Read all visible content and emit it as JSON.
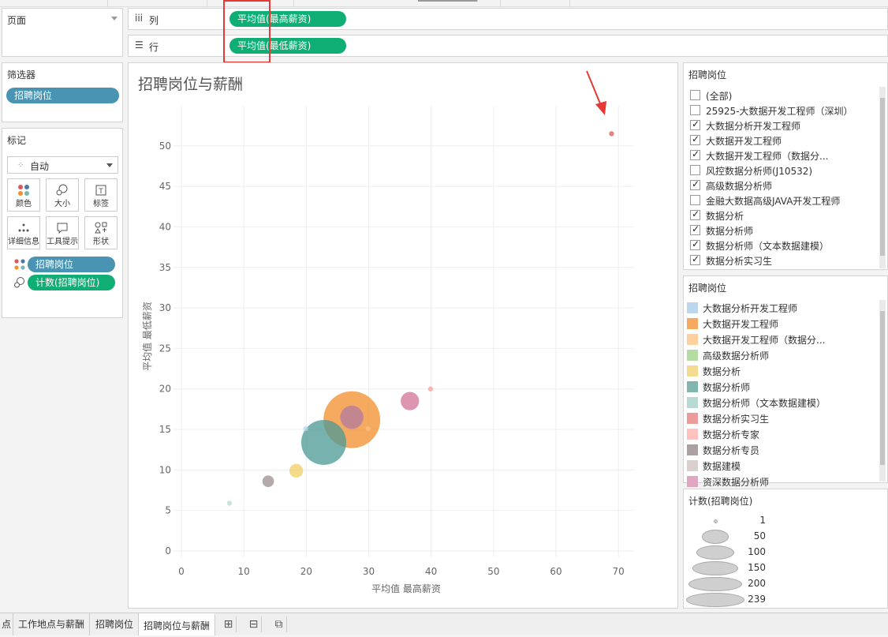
{
  "shelves": {
    "columns_label": "列",
    "rows_label": "行",
    "columns_field": "平均值(最高薪资)",
    "rows_field": "平均值(最低薪资)"
  },
  "pages": {
    "title": "页面"
  },
  "filters": {
    "title": "筛选器",
    "field": "招聘岗位"
  },
  "marks": {
    "title": "标记",
    "type": "自动",
    "buttons": [
      {
        "label": "颜色",
        "icon": "color-icon"
      },
      {
        "label": "大小",
        "icon": "size-icon"
      },
      {
        "label": "标签",
        "icon": "label-icon"
      },
      {
        "label": "详细信息",
        "icon": "detail-icon"
      },
      {
        "label": "工具提示",
        "icon": "tooltip-icon"
      },
      {
        "label": "形状",
        "icon": "shape-icon"
      }
    ],
    "fields": [
      {
        "label": "招聘岗位",
        "encoding": "color"
      },
      {
        "label": "计数(招聘岗位)",
        "encoding": "size"
      }
    ]
  },
  "chart": {
    "title": "招聘岗位与薪酬"
  },
  "chart_data": {
    "type": "scatter",
    "title": "招聘岗位与薪酬",
    "xlabel": "平均值 最高薪资",
    "ylabel": "平均值 最低薪资",
    "xlim": [
      0,
      72
    ],
    "ylim": [
      0,
      53
    ],
    "xticks": [
      0,
      10,
      20,
      30,
      40,
      50,
      60,
      70
    ],
    "yticks": [
      0,
      5,
      10,
      15,
      20,
      25,
      30,
      35,
      40,
      45,
      50
    ],
    "grid": true,
    "points": [
      {
        "x": 7.7,
        "y": 5.9,
        "count": 1,
        "color": "#b9d9d5"
      },
      {
        "x": 13.9,
        "y": 8.6,
        "count": 10,
        "color": "#9b8e8c"
      },
      {
        "x": 18.4,
        "y": 9.9,
        "count": 14,
        "color": "#f1ce63"
      },
      {
        "x": 19.9,
        "y": 15.1,
        "count": 1,
        "color": "#bcd6ee"
      },
      {
        "x": 22.8,
        "y": 13.4,
        "count": 150,
        "color": "#499894"
      },
      {
        "x": 27.3,
        "y": 16.2,
        "count": 239,
        "color": "#f28e2b"
      },
      {
        "x": 27.3,
        "y": 16.5,
        "count": 40,
        "color": "#b07aa1"
      },
      {
        "x": 29.9,
        "y": 15.1,
        "count": 1,
        "color": "#ffbe7d"
      },
      {
        "x": 36.6,
        "y": 18.5,
        "count": 25,
        "color": "#d37295"
      },
      {
        "x": 39.9,
        "y": 20.0,
        "count": 1,
        "color": "#ff9d9a"
      },
      {
        "x": 68.9,
        "y": 51.5,
        "count": 1,
        "color": "#e15759"
      }
    ]
  },
  "filter_list": {
    "title": "招聘岗位",
    "items": [
      {
        "label": "(全部)",
        "checked": false
      },
      {
        "label": "25925-大数据开发工程师（深圳）",
        "checked": false
      },
      {
        "label": "大数据分析开发工程师",
        "checked": true
      },
      {
        "label": "大数据开发工程师",
        "checked": true
      },
      {
        "label": "大数据开发工程师（数据分...",
        "checked": true
      },
      {
        "label": "风控数据分析师(J10532)",
        "checked": false
      },
      {
        "label": "高级数据分析师",
        "checked": true
      },
      {
        "label": "金融大数据高级JAVA开发工程师",
        "checked": false
      },
      {
        "label": "数据分析",
        "checked": true
      },
      {
        "label": "数据分析师",
        "checked": true
      },
      {
        "label": "数据分析师（文本数据建模）",
        "checked": true
      },
      {
        "label": "数据分析实习生",
        "checked": true
      }
    ]
  },
  "color_legend": {
    "title": "招聘岗位",
    "items": [
      {
        "label": "大数据分析开发工程师",
        "color": "#bcd6ee"
      },
      {
        "label": "大数据开发工程师",
        "color": "#f7a961"
      },
      {
        "label": "大数据开发工程师（数据分...",
        "color": "#ffcf9f"
      },
      {
        "label": "高级数据分析师",
        "color": "#b4dca3"
      },
      {
        "label": "数据分析",
        "color": "#f3dc8f"
      },
      {
        "label": "数据分析师",
        "color": "#80b5b0"
      },
      {
        "label": "数据分析师（文本数据建模）",
        "color": "#b9d9d5"
      },
      {
        "label": "数据分析实习生",
        "color": "#ec9b9b"
      },
      {
        "label": "数据分析专家",
        "color": "#ffc2bf"
      },
      {
        "label": "数据分析专员",
        "color": "#aba1a0"
      },
      {
        "label": "数据建模",
        "color": "#d9d0ce"
      },
      {
        "label": "资深数据分析师",
        "color": "#e2a7c0"
      }
    ]
  },
  "size_legend": {
    "title": "计数(招聘岗位)",
    "items": [
      "1",
      "50",
      "100",
      "150",
      "200",
      "239"
    ]
  },
  "tabs": {
    "items": [
      {
        "label": "点",
        "active": false
      },
      {
        "label": "工作地点与薪酬",
        "active": false
      },
      {
        "label": "招聘岗位",
        "active": false
      },
      {
        "label": "招聘岗位与薪酬",
        "active": true
      }
    ]
  }
}
